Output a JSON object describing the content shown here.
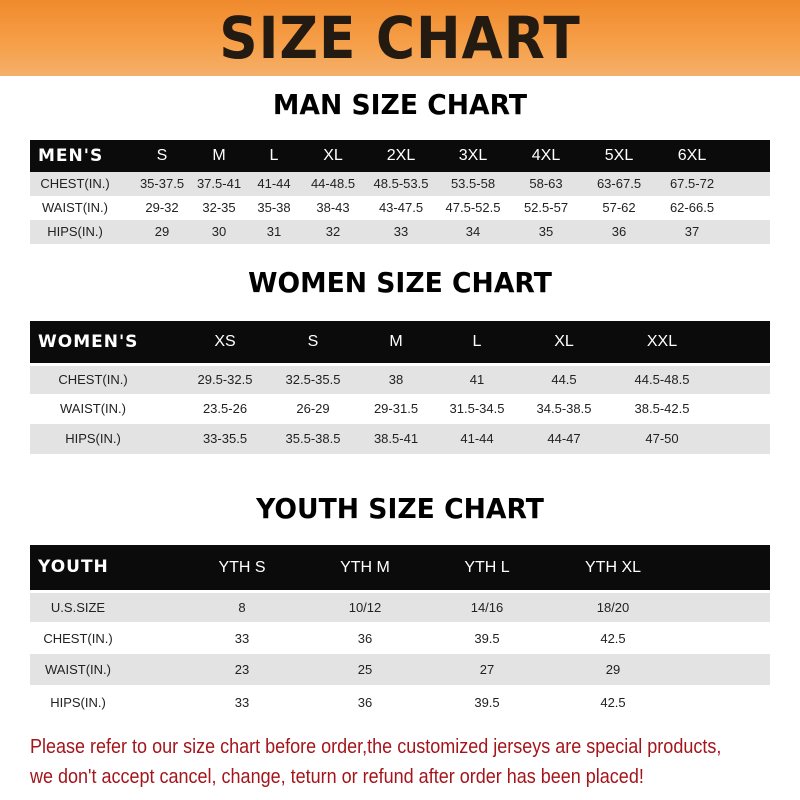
{
  "banner": {
    "title": "SIZE CHART",
    "color": "#f08a2c"
  },
  "men": {
    "title": "MAN SIZE CHART",
    "header": [
      "MEN'S",
      "S",
      "M",
      "L",
      "XL",
      "2XL",
      "3XL",
      "4XL",
      "5XL",
      "6XL"
    ],
    "rows": [
      [
        "CHEST(IN.)",
        "35-37.5",
        "37.5-41",
        "41-44",
        "44-48.5",
        "48.5-53.5",
        "53.5-58",
        "58-63",
        "63-67.5",
        "67.5-72"
      ],
      [
        "WAIST(IN.)",
        "29-32",
        "32-35",
        "35-38",
        "38-43",
        "43-47.5",
        "47.5-52.5",
        "52.5-57",
        "57-62",
        "62-66.5"
      ],
      [
        "HIPS(IN.)",
        "29",
        "30",
        "31",
        "32",
        "33",
        "34",
        "35",
        "36",
        "37"
      ]
    ]
  },
  "women": {
    "title": "WOMEN SIZE CHART",
    "header": [
      "WOMEN'S",
      "XS",
      "S",
      "M",
      "L",
      "XL",
      "XXL"
    ],
    "rows": [
      [
        "CHEST(IN.)",
        "29.5-32.5",
        "32.5-35.5",
        "38",
        "41",
        "44.5",
        "44.5-48.5"
      ],
      [
        "WAIST(IN.)",
        "23.5-26",
        "26-29",
        "29-31.5",
        "31.5-34.5",
        "34.5-38.5",
        "38.5-42.5"
      ],
      [
        "HIPS(IN.)",
        "33-35.5",
        "35.5-38.5",
        "38.5-41",
        "41-44",
        "44-47",
        "47-50"
      ]
    ]
  },
  "youth": {
    "title": "YOUTH SIZE CHART",
    "header": [
      "YOUTH",
      "YTH S",
      "YTH M",
      "YTH L",
      "YTH XL"
    ],
    "rows": [
      [
        "U.S.SIZE",
        "8",
        "10/12",
        "14/16",
        "18/20"
      ],
      [
        "CHEST(IN.)",
        "33",
        "36",
        "39.5",
        "42.5"
      ],
      [
        "WAIST(IN.)",
        "23",
        "25",
        "27",
        "29"
      ],
      [
        "HIPS(IN.)",
        "33",
        "36",
        "39.5",
        "42.5"
      ]
    ]
  },
  "notice": {
    "line1": "Please refer to our size chart before order,the customized jerseys are special products,",
    "line2": "we don't accept cancel, change, teturn or refund after order has been placed!"
  }
}
